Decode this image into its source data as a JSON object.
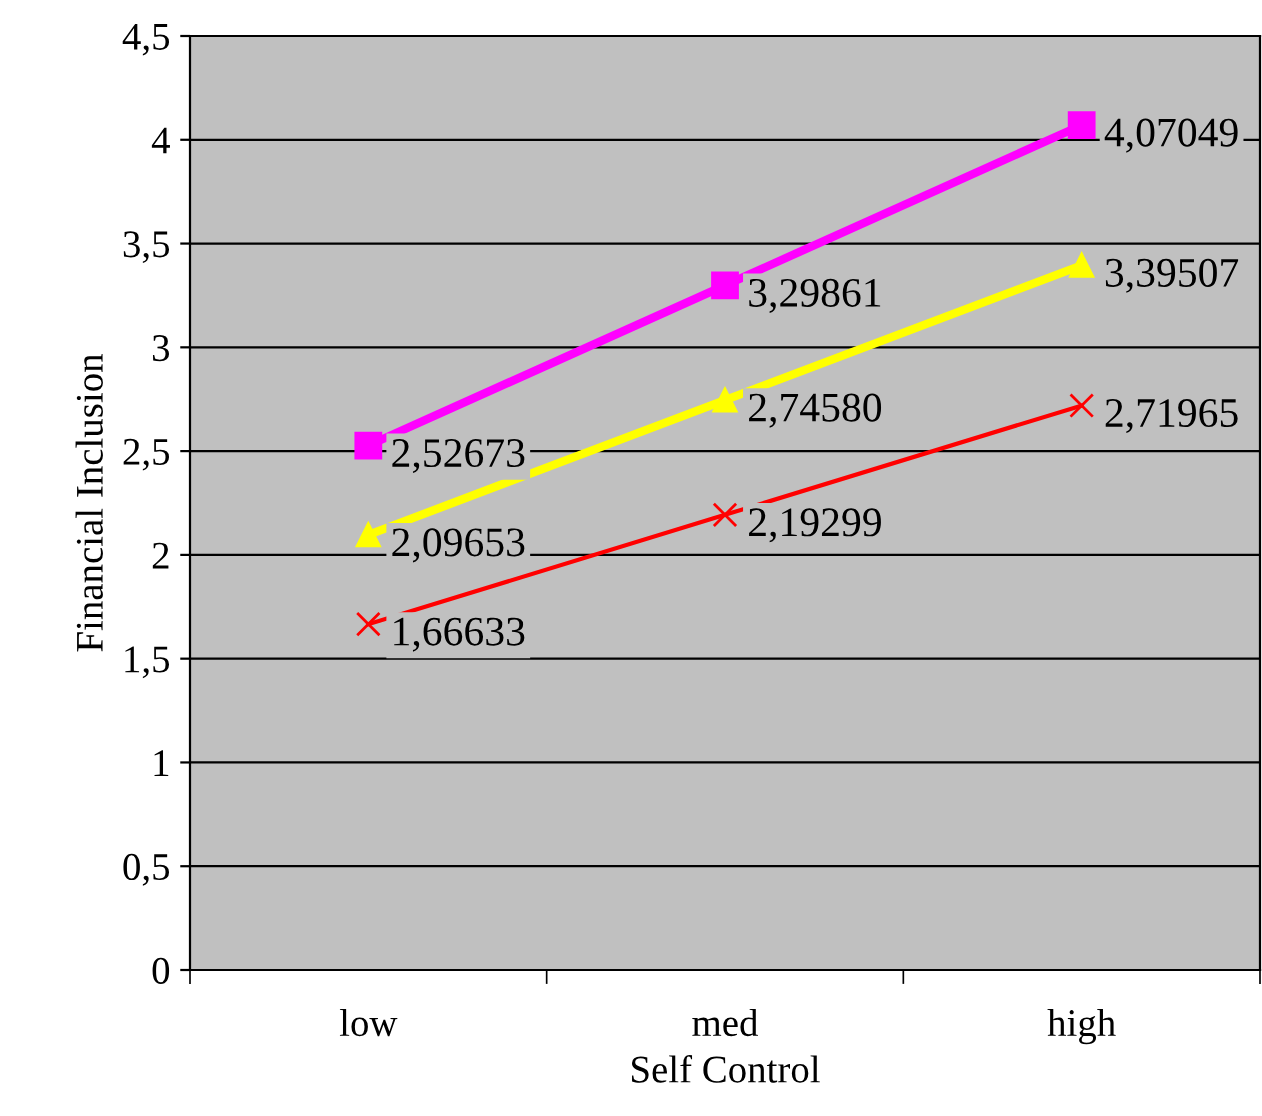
{
  "chart_data": {
    "type": "line",
    "xlabel": "Self Control",
    "ylabel": "Financial Inclusion",
    "categories": [
      "low",
      "med",
      "high"
    ],
    "series": [
      {
        "color": "#ff00ff",
        "marker": "square",
        "values": [
          2.52673,
          3.29861,
          4.07049
        ],
        "value_labels": [
          "2,52673",
          "3,29861",
          "4,07049"
        ]
      },
      {
        "color": "#ffff00",
        "marker": "triangle",
        "values": [
          2.09653,
          2.7458,
          3.39507
        ],
        "value_labels": [
          "2,09653",
          "2,74580",
          "3,39507"
        ]
      },
      {
        "color": "#ff0000",
        "marker": "cross",
        "values": [
          1.66633,
          2.19299,
          2.71965
        ],
        "value_labels": [
          "1,66633",
          "2,19299",
          "2,71965"
        ]
      }
    ],
    "ylim": [
      0,
      4.5
    ],
    "yticks": [
      0,
      {
        "value": 0.5,
        "label": "0,5"
      },
      1,
      {
        "value": 1.5,
        "label": "1,5"
      },
      2,
      {
        "value": 2.5,
        "label": "2,5"
      },
      3,
      {
        "value": 3.5,
        "label": "3,5"
      },
      4,
      {
        "value": 4.5,
        "label": "4,5"
      }
    ],
    "grid": "y",
    "legend": false,
    "line_style": "solid"
  }
}
